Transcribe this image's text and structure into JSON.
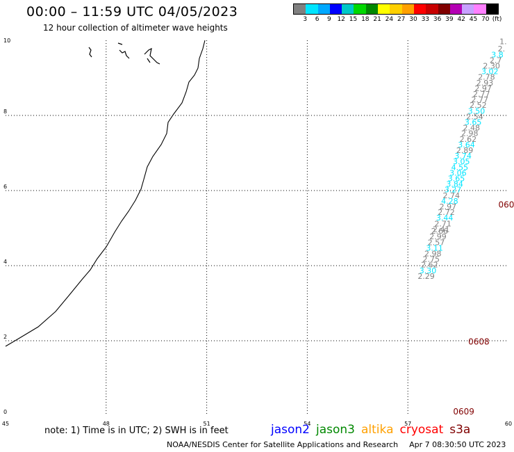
{
  "header": {
    "title": "00:00 – 11:59 UTC 04/05/2023",
    "subtitle": "12 hour collection of altimeter wave heights"
  },
  "legend": {
    "colors": [
      "#808080",
      "#00e5ff",
      "#00a8ff",
      "#0000ff",
      "#00c8c8",
      "#00d800",
      "#008800",
      "#ffff00",
      "#ffd000",
      "#ffa000",
      "#ff0000",
      "#c80000",
      "#800000",
      "#b400b4",
      "#c8a0ff",
      "#ff80ff",
      "#000000"
    ],
    "labels": [
      "3",
      "6",
      "9",
      "12",
      "15",
      "18",
      "21",
      "24",
      "27",
      "30",
      "33",
      "36",
      "39",
      "42",
      "45",
      "70"
    ],
    "unit": "(ft)"
  },
  "map": {
    "x_ticks": [
      "45",
      "48",
      "51",
      "54",
      "57",
      "60"
    ],
    "y_ticks": [
      "0",
      "2",
      "4",
      "6",
      "8",
      "10"
    ],
    "lon_range": [
      45,
      60
    ],
    "lat_range": [
      0,
      10
    ],
    "grid": "dotted",
    "observations": [
      {
        "lat": 9.9,
        "lon": 59.95,
        "swh": "1.",
        "color": "#808080"
      },
      {
        "lat": 9.7,
        "lon": 59.9,
        "swh": "2.",
        "color": "#808080"
      },
      {
        "lat": 9.55,
        "lon": 59.85,
        "swh": "3.8",
        "color": "#00e5ff"
      },
      {
        "lat": 9.4,
        "lon": 59.8,
        "swh": "2.7",
        "color": "#808080"
      },
      {
        "lat": 9.25,
        "lon": 59.75,
        "swh": "2.30",
        "color": "#808080"
      },
      {
        "lat": 9.1,
        "lon": 59.7,
        "swh": "3.02",
        "color": "#00e5ff"
      },
      {
        "lat": 8.95,
        "lon": 59.6,
        "swh": "2.78",
        "color": "#808080"
      },
      {
        "lat": 8.8,
        "lon": 59.55,
        "swh": "2.93",
        "color": "#808080"
      },
      {
        "lat": 8.65,
        "lon": 59.5,
        "swh": "2.97",
        "color": "#808080"
      },
      {
        "lat": 8.5,
        "lon": 59.45,
        "swh": "2.77",
        "color": "#808080"
      },
      {
        "lat": 8.35,
        "lon": 59.4,
        "swh": "2.77",
        "color": "#808080"
      },
      {
        "lat": 8.2,
        "lon": 59.35,
        "swh": "2.52",
        "color": "#808080"
      },
      {
        "lat": 8.05,
        "lon": 59.3,
        "swh": "3.50",
        "color": "#00e5ff"
      },
      {
        "lat": 7.9,
        "lon": 59.25,
        "swh": "2.54",
        "color": "#808080"
      },
      {
        "lat": 7.75,
        "lon": 59.2,
        "swh": "3.65",
        "color": "#00e5ff"
      },
      {
        "lat": 7.6,
        "lon": 59.15,
        "swh": "2.48",
        "color": "#808080"
      },
      {
        "lat": 7.45,
        "lon": 59.1,
        "swh": "2.98",
        "color": "#808080"
      },
      {
        "lat": 7.3,
        "lon": 59.05,
        "swh": "2.62",
        "color": "#808080"
      },
      {
        "lat": 7.15,
        "lon": 59.0,
        "swh": "3.64",
        "color": "#00e5ff"
      },
      {
        "lat": 7.0,
        "lon": 58.95,
        "swh": "2.89",
        "color": "#808080"
      },
      {
        "lat": 6.85,
        "lon": 58.9,
        "swh": "3.74",
        "color": "#00e5ff"
      },
      {
        "lat": 6.7,
        "lon": 58.85,
        "swh": "3.05",
        "color": "#00e5ff"
      },
      {
        "lat": 6.55,
        "lon": 58.8,
        "swh": "4.55",
        "color": "#00e5ff"
      },
      {
        "lat": 6.4,
        "lon": 58.75,
        "swh": "3.06",
        "color": "#00e5ff"
      },
      {
        "lat": 6.25,
        "lon": 58.7,
        "swh": "3.65",
        "color": "#00e5ff"
      },
      {
        "lat": 6.1,
        "lon": 58.65,
        "swh": "3.84",
        "color": "#00e5ff"
      },
      {
        "lat": 5.95,
        "lon": 58.6,
        "swh": "3.27",
        "color": "#00e5ff"
      },
      {
        "lat": 5.8,
        "lon": 58.55,
        "swh": "2.74",
        "color": "#808080"
      },
      {
        "lat": 5.65,
        "lon": 58.5,
        "swh": "4.28",
        "color": "#00e5ff"
      },
      {
        "lat": 5.5,
        "lon": 58.45,
        "swh": "2.97",
        "color": "#808080"
      },
      {
        "lat": 5.35,
        "lon": 58.4,
        "swh": "2.72",
        "color": "#808080"
      },
      {
        "lat": 5.2,
        "lon": 58.35,
        "swh": "3.44",
        "color": "#00e5ff"
      },
      {
        "lat": 5.05,
        "lon": 58.3,
        "swh": "2.71",
        "color": "#808080"
      },
      {
        "lat": 4.9,
        "lon": 58.25,
        "swh": "2.41",
        "color": "#808080"
      },
      {
        "lat": 4.85,
        "lon": 58.2,
        "swh": "2.66",
        "color": "#808080"
      },
      {
        "lat": 4.7,
        "lon": 58.15,
        "swh": "2.99",
        "color": "#808080"
      },
      {
        "lat": 4.55,
        "lon": 58.1,
        "swh": "2.57",
        "color": "#808080"
      },
      {
        "lat": 4.4,
        "lon": 58.05,
        "swh": "3.11",
        "color": "#00e5ff"
      },
      {
        "lat": 4.25,
        "lon": 58.0,
        "swh": "2.98",
        "color": "#808080"
      },
      {
        "lat": 4.1,
        "lon": 57.95,
        "swh": "2.75",
        "color": "#808080"
      },
      {
        "lat": 3.95,
        "lon": 57.9,
        "swh": "2.62",
        "color": "#808080"
      },
      {
        "lat": 3.8,
        "lon": 57.85,
        "swh": "3.30",
        "color": "#00e5ff"
      },
      {
        "lat": 3.65,
        "lon": 57.8,
        "swh": "2.29",
        "color": "#808080"
      }
    ],
    "time_labels": [
      {
        "lat": 5.55,
        "lon": 59.7,
        "text": "060",
        "color": "#800000"
      },
      {
        "lat": 1.9,
        "lon": 58.8,
        "text": "0608",
        "color": "#800000"
      },
      {
        "lat": 0.04,
        "lon": 58.35,
        "text": "0609",
        "color": "#800000"
      }
    ]
  },
  "footer": {
    "note": "note:  1) Time is in UTC;  2) SWH is in feet",
    "satellites": [
      {
        "name": "jason2",
        "color": "#0000ff"
      },
      {
        "name": "jason3",
        "color": "#008800"
      },
      {
        "name": "altika",
        "color": "#ffa000"
      },
      {
        "name": "cryosat",
        "color": "#ff0000"
      },
      {
        "name": "s3a",
        "color": "#800000"
      }
    ],
    "credit": "NOAA/NESDIS Center for Satellite Applications and Research",
    "timestamp": "Apr  7 08:30:50 UTC 2023"
  }
}
